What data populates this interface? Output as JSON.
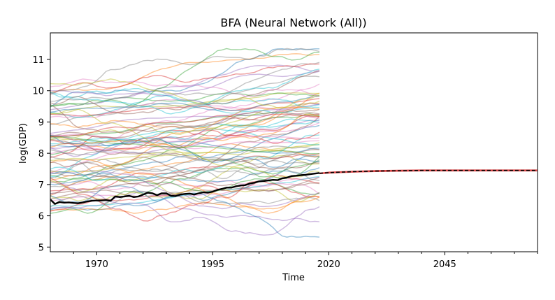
{
  "chart_data": {
    "type": "line",
    "title": "BFA (Neural Network (All))",
    "xlabel": "Time",
    "ylabel": "log(GDP)",
    "xlim": [
      1960,
      2065
    ],
    "ylim": [
      4.85,
      11.85
    ],
    "x_ticks": [
      1970,
      1995,
      2020,
      2045
    ],
    "x_tick_labels": [
      "1970",
      "1995",
      "2020",
      "2045"
    ],
    "y_ticks": [
      5,
      6,
      7,
      8,
      9,
      10,
      11
    ],
    "y_tick_labels": [
      "5",
      "6",
      "7",
      "8",
      "9",
      "10",
      "11"
    ],
    "grid": false,
    "legend": "none",
    "background_series": {
      "count": 80,
      "x_range": [
        1960,
        2018
      ],
      "start_range": [
        5.8,
        10.4
      ],
      "end_range": [
        6.5,
        11.35
      ],
      "alpha": 0.45,
      "palette": [
        "#1f77b4",
        "#ff7f0e",
        "#2ca02c",
        "#d62728",
        "#9467bd",
        "#8c564b",
        "#e377c2",
        "#7f7f7f",
        "#bcbd22",
        "#17becf"
      ]
    },
    "series": [
      {
        "color": "#000000",
        "x": [
          1960,
          1961,
          1962,
          1963,
          1964,
          1965,
          1966,
          1967,
          1968,
          1969,
          1970,
          1971,
          1972,
          1973,
          1974,
          1975,
          1976,
          1977,
          1978,
          1979,
          1980,
          1981,
          1982,
          1983,
          1984,
          1985,
          1986,
          1987,
          1988,
          1989,
          1990,
          1991,
          1992,
          1993,
          1994,
          1995,
          1996,
          1997,
          1998,
          1999,
          2000,
          2001,
          2002,
          2003,
          2004,
          2005,
          2006,
          2007,
          2008,
          2009,
          2010,
          2011,
          2012,
          2013,
          2014,
          2015,
          2016,
          2017,
          2018
        ],
        "values": [
          6.52,
          6.38,
          6.44,
          6.42,
          6.43,
          6.41,
          6.4,
          6.43,
          6.46,
          6.48,
          6.49,
          6.49,
          6.5,
          6.48,
          6.62,
          6.6,
          6.62,
          6.64,
          6.6,
          6.62,
          6.68,
          6.74,
          6.72,
          6.66,
          6.72,
          6.72,
          6.64,
          6.63,
          6.68,
          6.7,
          6.71,
          6.68,
          6.72,
          6.75,
          6.74,
          6.77,
          6.83,
          6.86,
          6.9,
          6.9,
          6.94,
          6.97,
          6.98,
          7.03,
          7.06,
          7.1,
          7.11,
          7.13,
          7.15,
          7.14,
          7.2,
          7.22,
          7.27,
          7.28,
          7.3,
          7.31,
          7.33,
          7.35,
          7.37
        ]
      },
      {
        "color": "#000000",
        "style": "dashed",
        "x": [
          2018,
          2020,
          2025,
          2030,
          2035,
          2040,
          2045,
          2050,
          2055,
          2060,
          2065
        ],
        "values": [
          7.36,
          7.38,
          7.41,
          7.43,
          7.44,
          7.45,
          7.45,
          7.45,
          7.45,
          7.45,
          7.45
        ]
      }
    ],
    "forecast_band": {
      "color": "#d62728",
      "x": [
        2018,
        2020,
        2025,
        2030,
        2035,
        2040,
        2045,
        2050,
        2055,
        2060,
        2065
      ],
      "lower": [
        7.33,
        7.35,
        7.38,
        7.4,
        7.41,
        7.42,
        7.42,
        7.42,
        7.42,
        7.42,
        7.42
      ],
      "upper": [
        7.38,
        7.41,
        7.44,
        7.46,
        7.47,
        7.48,
        7.48,
        7.48,
        7.48,
        7.48,
        7.48
      ]
    }
  }
}
